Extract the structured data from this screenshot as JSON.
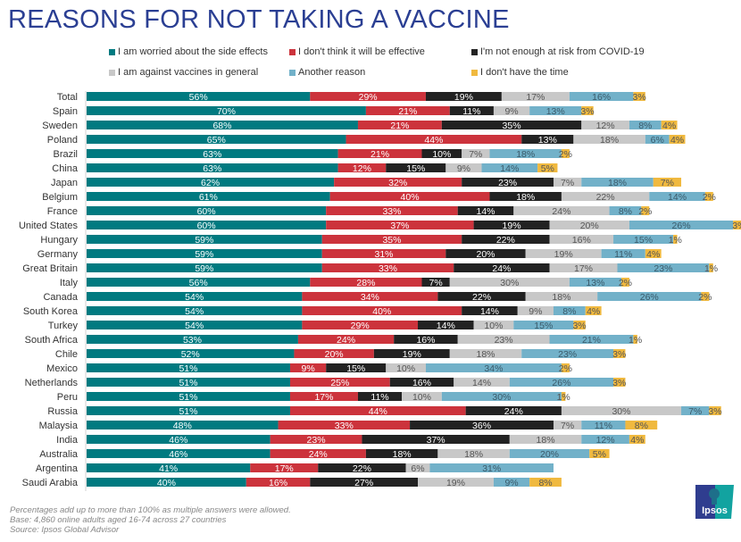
{
  "title": "REASONS FOR NOT TAKING A VACCINE",
  "footer": {
    "line1": "Percentages add up to more than 100% as multiple answers were allowed.",
    "line2": "Base: 4,860 online adults aged 16-74 across 27 countries",
    "line3": "Source: Ipsos Global Advisor"
  },
  "logo": {
    "text": "Ipsos"
  },
  "colors": {
    "title": "#2b3f93",
    "side_effects": "#007a80",
    "not_effective": "#cc333c",
    "not_at_risk": "#222222",
    "against_vaccines": "#c8c8c8",
    "another_reason": "#72b1c9",
    "no_time": "#f0b93f"
  },
  "chart_data": {
    "type": "bar",
    "orientation": "horizontal",
    "stacked": true,
    "title": "REASONS FOR NOT TAKING A VACCINE",
    "xlabel": "",
    "ylabel": "",
    "legend_position": "top",
    "grid": false,
    "value_format": "percent",
    "categories": [
      "Total",
      "Spain",
      "Sweden",
      "Poland",
      "Brazil",
      "China",
      "Japan",
      "Belgium",
      "France",
      "United States",
      "Hungary",
      "Germany",
      "Great Britain",
      "Italy",
      "Canada",
      "South Korea",
      "Turkey",
      "South Africa",
      "Chile",
      "Mexico",
      "Netherlands",
      "Peru",
      "Russia",
      "Malaysia",
      "India",
      "Australia",
      "Argentina",
      "Saudi Arabia"
    ],
    "series": [
      {
        "name": "I am worried about the side effects",
        "color": "#007a80",
        "label_color": "#ffffff",
        "values": [
          56,
          70,
          68,
          65,
          63,
          63,
          62,
          61,
          60,
          60,
          59,
          59,
          59,
          56,
          54,
          54,
          54,
          53,
          52,
          51,
          51,
          51,
          51,
          48,
          46,
          46,
          41,
          40
        ]
      },
      {
        "name": "I don't think it will be effective",
        "color": "#cc333c",
        "label_color": "#ffffff",
        "values": [
          29,
          21,
          21,
          44,
          21,
          12,
          32,
          40,
          33,
          37,
          35,
          31,
          33,
          28,
          34,
          40,
          29,
          24,
          20,
          9,
          25,
          17,
          44,
          33,
          23,
          24,
          17,
          16
        ]
      },
      {
        "name": "I'm not enough at risk from COVID-19",
        "color": "#222222",
        "label_color": "#ffffff",
        "values": [
          19,
          11,
          35,
          13,
          10,
          15,
          23,
          18,
          14,
          19,
          22,
          20,
          24,
          7,
          22,
          14,
          14,
          16,
          19,
          15,
          16,
          11,
          24,
          36,
          37,
          18,
          22,
          27
        ]
      },
      {
        "name": "I am against vaccines in general",
        "color": "#c8c8c8",
        "label_color": "#555555",
        "values": [
          17,
          9,
          12,
          18,
          7,
          9,
          7,
          22,
          24,
          20,
          16,
          19,
          17,
          30,
          18,
          9,
          10,
          23,
          18,
          10,
          14,
          10,
          30,
          7,
          18,
          18,
          6,
          19
        ]
      },
      {
        "name": "Another reason",
        "color": "#72b1c9",
        "label_color": "#3a5a6a",
        "values": [
          16,
          13,
          8,
          6,
          18,
          14,
          18,
          14,
          8,
          26,
          15,
          11,
          23,
          13,
          26,
          8,
          15,
          21,
          23,
          34,
          26,
          30,
          7,
          11,
          12,
          20,
          31,
          9
        ]
      },
      {
        "name": "I don't have the time",
        "color": "#f0b93f",
        "label_color": "#555555",
        "values": [
          3,
          3,
          4,
          4,
          2,
          5,
          7,
          2,
          2,
          3,
          1,
          4,
          1,
          2,
          2,
          4,
          3,
          1,
          3,
          2,
          3,
          1,
          3,
          8,
          4,
          5,
          0,
          8
        ]
      }
    ],
    "legend": [
      "I am worried about the side effects",
      "I don't think it will be effective",
      "I'm not enough at risk from COVID-19",
      "I am against vaccines in general",
      "Another reason",
      "I don't have the time"
    ]
  }
}
